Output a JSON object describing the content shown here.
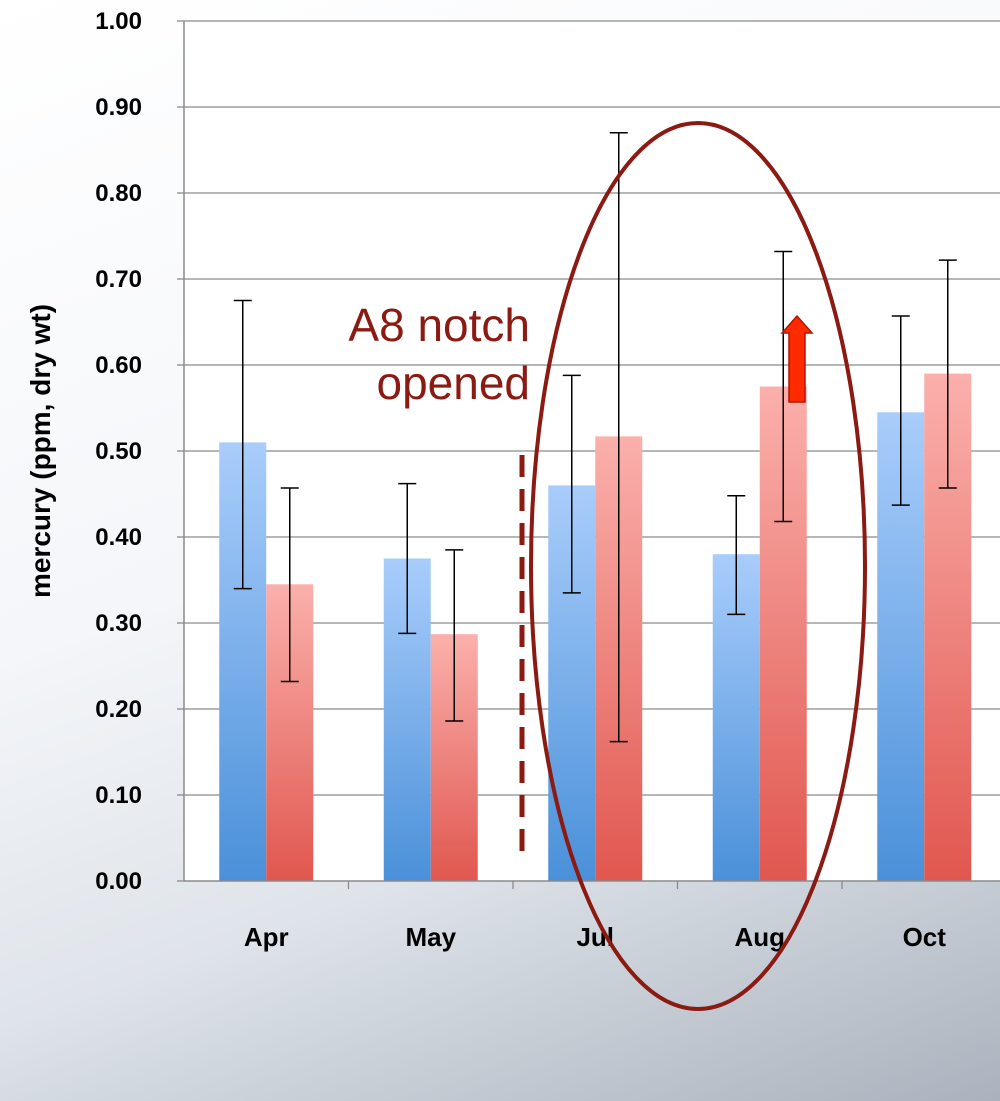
{
  "chart_data": {
    "type": "bar",
    "title": "",
    "xlabel": "",
    "ylabel": "mercury (ppm, dry wt)",
    "ylim": [
      0,
      1.0
    ],
    "yticks": [
      "0.00",
      "0.10",
      "0.20",
      "0.30",
      "0.40",
      "0.50",
      "0.60",
      "0.70",
      "0.80",
      "0.90",
      "1.00"
    ],
    "grid": true,
    "legend": "none",
    "categories": [
      "Apr",
      "May",
      "Jul",
      "Aug",
      "Oct"
    ],
    "series": [
      {
        "color": "#4a90d9",
        "values": [
          0.51,
          0.375,
          0.46,
          0.38,
          0.545
        ],
        "error_low": [
          0.34,
          0.288,
          0.335,
          0.31,
          0.437
        ],
        "error_high": [
          0.675,
          0.462,
          0.588,
          0.448,
          0.657
        ]
      },
      {
        "color": "#e0574f",
        "values": [
          0.345,
          0.287,
          0.517,
          0.575,
          0.59
        ],
        "error_low": [
          0.232,
          0.186,
          0.162,
          0.418,
          0.457
        ],
        "error_high": [
          0.457,
          0.385,
          0.87,
          0.732,
          0.722
        ]
      }
    ],
    "annotations": {
      "notch_text_line1": "A8 notch",
      "notch_text_line2": "opened",
      "notch_text_color": "#8b1a12",
      "notch_line_color": "#8b1a12",
      "notch_after_category": "May",
      "highlight_ellipse_categories": [
        "Jul",
        "Aug"
      ],
      "highlight_ellipse_color": "#8b1a12",
      "increase_arrow_category": "Aug",
      "increase_arrow_color": "#ff2a00"
    }
  }
}
